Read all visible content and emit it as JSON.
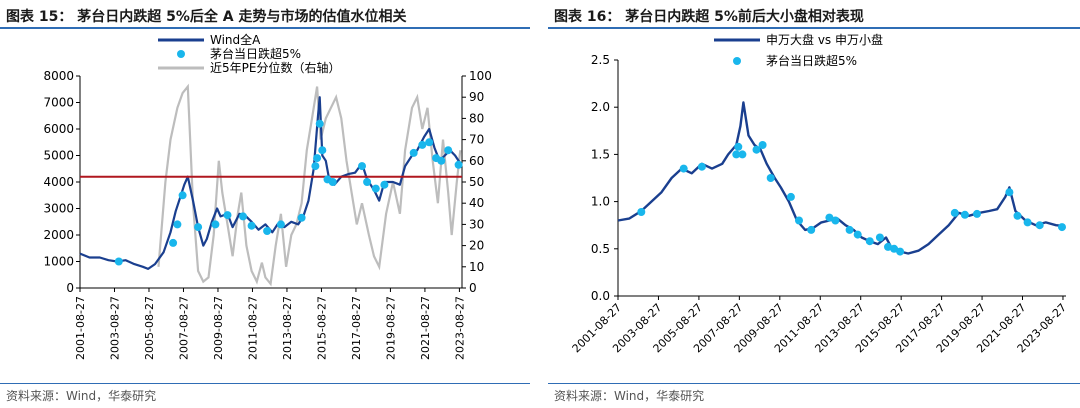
{
  "left": {
    "title": "图表 15： 茅台日内跌超 5%后全 A 走势与市场的估值水位相关",
    "source": "资料来源：Wind，华泰研究"
  },
  "right": {
    "title": "图表 16： 茅台日内跌超 5%前后大小盘相对表现",
    "source": "资料来源：Wind，华泰研究"
  },
  "colors": {
    "line_primary": "#1a3f8f",
    "dots": "#19b6ec",
    "pe_line": "#bdbdbd",
    "ref_line": "#b0171f",
    "rule": "#2f6db5"
  },
  "chart_data": [
    {
      "type": "line",
      "title": "",
      "x_ticks": [
        "2001-08-27",
        "2003-08-27",
        "2005-08-27",
        "2007-08-27",
        "2009-08-27",
        "2011-08-27",
        "2013-08-27",
        "2015-08-27",
        "2017-08-27",
        "2019-08-27",
        "2021-08-27",
        "2023-08-27"
      ],
      "xlim": [
        2001.65,
        2023.8
      ],
      "ylim": [
        0,
        8000
      ],
      "yticks": [
        0,
        1000,
        2000,
        3000,
        4000,
        5000,
        6000,
        7000,
        8000
      ],
      "y2lim": [
        0,
        100
      ],
      "y2ticks": [
        0,
        10,
        20,
        30,
        40,
        50,
        60,
        70,
        80,
        90,
        100
      ],
      "reference_line_y": 4200,
      "legend_placement": "top-left",
      "series": [
        {
          "name": "Wind全A",
          "axis": "left",
          "points": [
            [
              2001.65,
              1300
            ],
            [
              2002.2,
              1150
            ],
            [
              2002.8,
              1150
            ],
            [
              2003.3,
              1050
            ],
            [
              2003.8,
              1000
            ],
            [
              2004.3,
              1050
            ],
            [
              2004.8,
              900
            ],
            [
              2005.3,
              800
            ],
            [
              2005.6,
              720
            ],
            [
              2006.0,
              900
            ],
            [
              2006.5,
              1350
            ],
            [
              2006.9,
              2100
            ],
            [
              2007.2,
              2900
            ],
            [
              2007.5,
              3500
            ],
            [
              2007.7,
              3900
            ],
            [
              2007.9,
              4200
            ],
            [
              2008.2,
              3300
            ],
            [
              2008.5,
              2300
            ],
            [
              2008.8,
              1600
            ],
            [
              2009.0,
              1850
            ],
            [
              2009.3,
              2500
            ],
            [
              2009.6,
              3000
            ],
            [
              2009.8,
              2700
            ],
            [
              2010.2,
              2800
            ],
            [
              2010.5,
              2300
            ],
            [
              2010.9,
              2800
            ],
            [
              2011.2,
              2750
            ],
            [
              2011.6,
              2500
            ],
            [
              2012.0,
              2200
            ],
            [
              2012.4,
              2400
            ],
            [
              2012.8,
              2100
            ],
            [
              2013.1,
              2400
            ],
            [
              2013.5,
              2300
            ],
            [
              2013.9,
              2500
            ],
            [
              2014.3,
              2400
            ],
            [
              2014.6,
              2700
            ],
            [
              2014.9,
              3300
            ],
            [
              2015.2,
              4500
            ],
            [
              2015.45,
              6500
            ],
            [
              2015.55,
              7200
            ],
            [
              2015.7,
              5000
            ],
            [
              2015.9,
              4800
            ],
            [
              2016.1,
              4100
            ],
            [
              2016.4,
              3900
            ],
            [
              2016.8,
              4200
            ],
            [
              2017.2,
              4300
            ],
            [
              2017.6,
              4350
            ],
            [
              2018.0,
              4700
            ],
            [
              2018.3,
              4100
            ],
            [
              2018.7,
              3700
            ],
            [
              2019.0,
              3300
            ],
            [
              2019.3,
              4000
            ],
            [
              2019.8,
              4000
            ],
            [
              2020.2,
              3900
            ],
            [
              2020.5,
              4600
            ],
            [
              2020.9,
              5000
            ],
            [
              2021.2,
              5200
            ],
            [
              2021.6,
              5700
            ],
            [
              2021.9,
              6000
            ],
            [
              2022.2,
              5300
            ],
            [
              2022.5,
              4800
            ],
            [
              2022.8,
              5000
            ],
            [
              2023.1,
              5200
            ],
            [
              2023.4,
              5000
            ],
            [
              2023.7,
              4700
            ]
          ]
        },
        {
          "name": "茅台当日跌超5%",
          "axis": "left",
          "points": [
            [
              2003.9,
              1000
            ],
            [
              2007.05,
              1700
            ],
            [
              2007.3,
              2400
            ],
            [
              2007.6,
              3500
            ],
            [
              2008.5,
              2300
            ],
            [
              2009.5,
              2400
            ],
            [
              2010.2,
              2750
            ],
            [
              2011.1,
              2700
            ],
            [
              2011.6,
              2350
            ],
            [
              2012.5,
              2150
            ],
            [
              2013.3,
              2400
            ],
            [
              2014.5,
              2650
            ],
            [
              2015.3,
              4600
            ],
            [
              2015.4,
              4900
            ],
            [
              2015.55,
              6200
            ],
            [
              2015.7,
              5200
            ],
            [
              2016.0,
              4100
            ],
            [
              2016.3,
              4000
            ],
            [
              2018.0,
              4600
            ],
            [
              2018.3,
              4000
            ],
            [
              2018.8,
              3750
            ],
            [
              2019.3,
              3900
            ],
            [
              2021.0,
              5100
            ],
            [
              2021.5,
              5400
            ],
            [
              2021.9,
              5500
            ],
            [
              2022.3,
              4900
            ],
            [
              2022.6,
              4800
            ],
            [
              2023.0,
              5200
            ],
            [
              2023.6,
              4650
            ]
          ]
        },
        {
          "name": "近5年PE分位数（右轴）",
          "axis": "right",
          "points": [
            [
              2006.2,
              10
            ],
            [
              2006.6,
              50
            ],
            [
              2006.9,
              70
            ],
            [
              2007.3,
              85
            ],
            [
              2007.6,
              92
            ],
            [
              2007.9,
              95
            ],
            [
              2008.2,
              40
            ],
            [
              2008.5,
              8
            ],
            [
              2008.8,
              3
            ],
            [
              2009.1,
              5
            ],
            [
              2009.4,
              25
            ],
            [
              2009.7,
              60
            ],
            [
              2009.9,
              45
            ],
            [
              2010.2,
              30
            ],
            [
              2010.5,
              15
            ],
            [
              2010.8,
              35
            ],
            [
              2011.0,
              45
            ],
            [
              2011.3,
              20
            ],
            [
              2011.6,
              8
            ],
            [
              2011.9,
              3
            ],
            [
              2012.2,
              12
            ],
            [
              2012.4,
              5
            ],
            [
              2012.7,
              2
            ],
            [
              2013.0,
              20
            ],
            [
              2013.3,
              35
            ],
            [
              2013.6,
              10
            ],
            [
              2013.9,
              25
            ],
            [
              2014.2,
              30
            ],
            [
              2014.5,
              40
            ],
            [
              2014.8,
              65
            ],
            [
              2015.1,
              80
            ],
            [
              2015.4,
              95
            ],
            [
              2015.6,
              70
            ],
            [
              2015.9,
              80
            ],
            [
              2016.2,
              85
            ],
            [
              2016.5,
              90
            ],
            [
              2016.8,
              80
            ],
            [
              2017.1,
              60
            ],
            [
              2017.4,
              45
            ],
            [
              2017.7,
              30
            ],
            [
              2018.0,
              40
            ],
            [
              2018.4,
              25
            ],
            [
              2018.7,
              15
            ],
            [
              2019.0,
              10
            ],
            [
              2019.4,
              35
            ],
            [
              2019.8,
              50
            ],
            [
              2020.2,
              35
            ],
            [
              2020.5,
              65
            ],
            [
              2020.9,
              85
            ],
            [
              2021.2,
              90
            ],
            [
              2021.5,
              75
            ],
            [
              2021.8,
              85
            ],
            [
              2022.1,
              60
            ],
            [
              2022.4,
              40
            ],
            [
              2022.7,
              70
            ],
            [
              2023.0,
              45
            ],
            [
              2023.2,
              25
            ],
            [
              2023.5,
              50
            ],
            [
              2023.7,
              65
            ]
          ]
        }
      ]
    },
    {
      "type": "line",
      "title": "",
      "x_ticks": [
        "2001-08-27",
        "2003-08-27",
        "2005-08-27",
        "2007-08-27",
        "2009-08-27",
        "2011-08-27",
        "2013-08-27",
        "2015-08-27",
        "2017-08-27",
        "2019-08-27",
        "2021-08-27",
        "2023-08-27"
      ],
      "xlim": [
        2001.65,
        2023.8
      ],
      "ylim": [
        0,
        2.5
      ],
      "yticks": [
        "0.0",
        "0.5",
        "1.0",
        "1.5",
        "2.0",
        "2.5"
      ],
      "legend_placement": "top-left",
      "series": [
        {
          "name": "申万大盘 vs 申万小盘",
          "points": [
            [
              2001.65,
              0.8
            ],
            [
              2002.2,
              0.82
            ],
            [
              2002.8,
              0.9
            ],
            [
              2003.3,
              1.0
            ],
            [
              2003.8,
              1.1
            ],
            [
              2004.3,
              1.25
            ],
            [
              2004.8,
              1.35
            ],
            [
              2005.3,
              1.3
            ],
            [
              2005.8,
              1.4
            ],
            [
              2006.3,
              1.35
            ],
            [
              2006.8,
              1.4
            ],
            [
              2007.1,
              1.5
            ],
            [
              2007.5,
              1.6
            ],
            [
              2007.7,
              1.8
            ],
            [
              2007.85,
              2.05
            ],
            [
              2008.1,
              1.7
            ],
            [
              2008.4,
              1.6
            ],
            [
              2008.7,
              1.55
            ],
            [
              2009.0,
              1.4
            ],
            [
              2009.4,
              1.25
            ],
            [
              2009.7,
              1.15
            ],
            [
              2010.1,
              1.0
            ],
            [
              2010.5,
              0.8
            ],
            [
              2010.9,
              0.7
            ],
            [
              2011.3,
              0.72
            ],
            [
              2011.7,
              0.78
            ],
            [
              2012.1,
              0.8
            ],
            [
              2012.5,
              0.82
            ],
            [
              2012.9,
              0.75
            ],
            [
              2013.3,
              0.7
            ],
            [
              2013.7,
              0.62
            ],
            [
              2014.1,
              0.58
            ],
            [
              2014.5,
              0.55
            ],
            [
              2014.9,
              0.62
            ],
            [
              2015.2,
              0.5
            ],
            [
              2015.6,
              0.47
            ],
            [
              2016.0,
              0.45
            ],
            [
              2016.5,
              0.48
            ],
            [
              2017.0,
              0.55
            ],
            [
              2017.5,
              0.65
            ],
            [
              2018.0,
              0.75
            ],
            [
              2018.5,
              0.88
            ],
            [
              2019.0,
              0.85
            ],
            [
              2019.5,
              0.88
            ],
            [
              2020.0,
              0.9
            ],
            [
              2020.4,
              0.92
            ],
            [
              2020.8,
              1.05
            ],
            [
              2021.0,
              1.15
            ],
            [
              2021.3,
              0.9
            ],
            [
              2021.8,
              0.8
            ],
            [
              2022.3,
              0.75
            ],
            [
              2022.8,
              0.78
            ],
            [
              2023.3,
              0.75
            ],
            [
              2023.7,
              0.74
            ]
          ]
        },
        {
          "name": "茅台当日跌超5%",
          "points": [
            [
              2002.8,
              0.89
            ],
            [
              2004.9,
              1.35
            ],
            [
              2005.8,
              1.37
            ],
            [
              2007.5,
              1.5
            ],
            [
              2007.6,
              1.58
            ],
            [
              2007.8,
              1.5
            ],
            [
              2008.5,
              1.55
            ],
            [
              2008.8,
              1.6
            ],
            [
              2009.2,
              1.25
            ],
            [
              2010.2,
              1.05
            ],
            [
              2010.6,
              0.8
            ],
            [
              2011.2,
              0.7
            ],
            [
              2012.1,
              0.83
            ],
            [
              2012.4,
              0.8
            ],
            [
              2013.1,
              0.7
            ],
            [
              2013.5,
              0.65
            ],
            [
              2014.1,
              0.58
            ],
            [
              2014.6,
              0.62
            ],
            [
              2015.0,
              0.52
            ],
            [
              2015.3,
              0.5
            ],
            [
              2015.6,
              0.47
            ],
            [
              2018.3,
              0.88
            ],
            [
              2018.8,
              0.86
            ],
            [
              2019.4,
              0.87
            ],
            [
              2021.0,
              1.1
            ],
            [
              2021.4,
              0.85
            ],
            [
              2021.9,
              0.78
            ],
            [
              2022.5,
              0.75
            ],
            [
              2023.6,
              0.73
            ]
          ]
        }
      ]
    }
  ]
}
